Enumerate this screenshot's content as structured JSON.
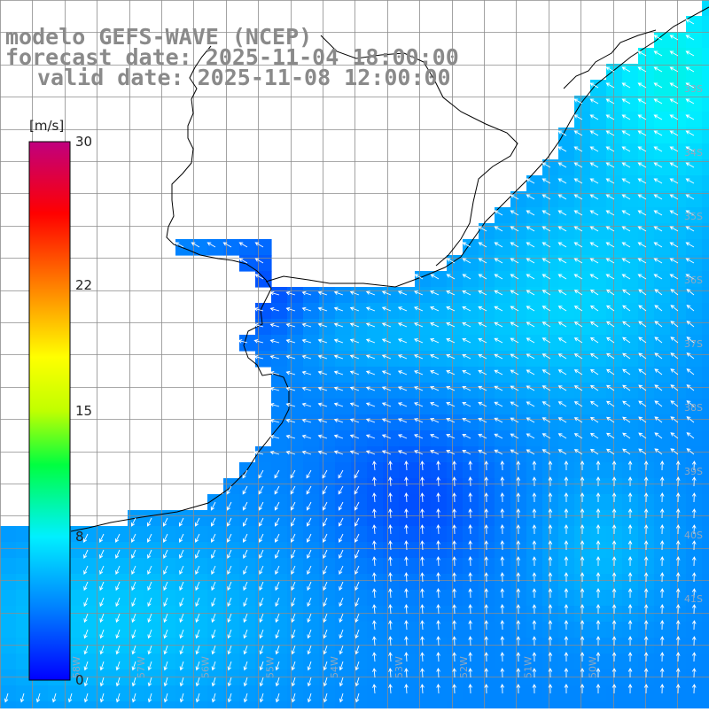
{
  "header": {
    "title": "modelo GEFS-WAVE (NCEP)",
    "forecast_date": "forecast date: 2025-11-04 18:00:00",
    "valid_date": "valid date: 2025-11-08 12:00:00"
  },
  "colorbar": {
    "unit": "[m/s]",
    "ticks": [
      "30",
      "22",
      "15",
      "8",
      "0"
    ],
    "tick_values": [
      30,
      22,
      15,
      8,
      0
    ],
    "vmin": 0,
    "vmax": 30,
    "stops": [
      {
        "v": 0,
        "color": "#0000ff"
      },
      {
        "v": 4,
        "color": "#0080ff"
      },
      {
        "v": 8,
        "color": "#00f0ff"
      },
      {
        "v": 12,
        "color": "#00ff40"
      },
      {
        "v": 15,
        "color": "#c0ff00"
      },
      {
        "v": 18,
        "color": "#ffff00"
      },
      {
        "v": 22,
        "color": "#ff7f00"
      },
      {
        "v": 26,
        "color": "#ff0000"
      },
      {
        "v": 30,
        "color": "#c0007f"
      }
    ]
  },
  "grid": {
    "lat_labels": [
      "33S",
      "34S",
      "35S",
      "36S",
      "37S",
      "38S",
      "39S",
      "40S",
      "41S"
    ],
    "lon_labels": [
      "58W",
      "57W",
      "56W",
      "55W",
      "54W",
      "53W",
      "52W",
      "51W",
      "50W"
    ]
  },
  "colors": {
    "land": "#ffffff",
    "coast": "#000000",
    "gridline": "#8c8c8c",
    "vector": "#ffffff",
    "header_text": "#8a8a8a"
  }
}
